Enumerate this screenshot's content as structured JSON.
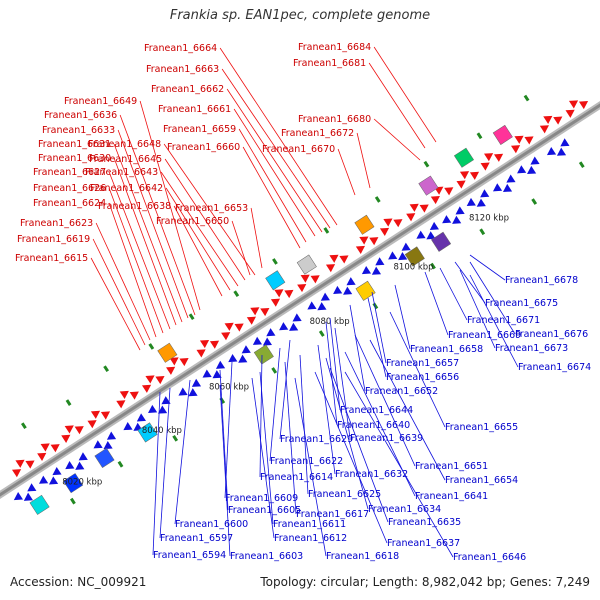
{
  "title": "Frankia sp. EAN1pec, complete genome",
  "footer": {
    "accession": "Accession: NC_009921",
    "stats": "Topology: circular; Length: 8,982,042 bp; Genes: 7,249"
  },
  "colors": {
    "forward": "#ee1111",
    "reverse": "#1111dd",
    "backbone": "#888888",
    "rna_tick": "#228822"
  },
  "scale_marks": [
    "8020 kbp",
    "8040 kbp",
    "8060 kbp",
    "8080 kbp",
    "8100 kbp",
    "8120 kbp"
  ],
  "upper_labels": [
    "Franean1_6664",
    "Franean1_6663",
    "Franean1_6662",
    "Franean1_6661",
    "Franean1_6659",
    "Franean1_6660",
    "Franean1_6684",
    "Franean1_6681",
    "Franean1_6680",
    "Franean1_6672",
    "Franean1_6670",
    "Franean1_6649",
    "Franean1_6636",
    "Franean1_6633",
    "Franean1_6648",
    "Franean1_6631",
    "Franean1_6645",
    "Franean1_6630",
    "Franean1_6643",
    "Franean1_6627",
    "Franean1_6642",
    "Franean1_6626",
    "Franean1_6638",
    "Franean1_6653",
    "Franean1_6624",
    "Franean1_6650",
    "Franean1_6623",
    "Franean1_6619",
    "Franean1_6615"
  ],
  "lower_labels": [
    "Franean1_6678",
    "Franean1_6675",
    "Franean1_6671",
    "Franean1_6669",
    "Franean1_6676",
    "Franean1_6658",
    "Franean1_6673",
    "Franean1_6674",
    "Franean1_6657",
    "Franean1_6656",
    "Franean1_6652",
    "Franean1_6644",
    "Franean1_6640",
    "Franean1_6655",
    "Franean1_6639",
    "Franean1_6629",
    "Franean1_6622",
    "Franean1_6651",
    "Franean1_6632",
    "Franean1_6654",
    "Franean1_6614",
    "Franean1_6625",
    "Franean1_6641",
    "Franean1_6609",
    "Franean1_6617",
    "Franean1_6634",
    "Franean1_6605",
    "Franean1_6611",
    "Franean1_6600",
    "Franean1_6635",
    "Franean1_6612",
    "Franean1_6597",
    "Franean1_6637",
    "Franean1_6594",
    "Franean1_6603",
    "Franean1_6618",
    "Franean1_6646"
  ]
}
